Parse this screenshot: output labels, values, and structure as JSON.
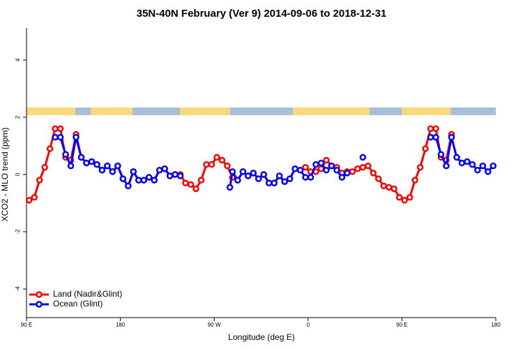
{
  "chart_data": {
    "type": "line",
    "title": "35N-40N February (Ver 9)   2014-09-06 to 2018-12-31",
    "x_label": "Longitude (deg E)",
    "y_label": "XCO2 - MLO trend (ppm)",
    "xlim": [
      90,
      540
    ],
    "xticks": [
      {
        "value": 90,
        "label": "90 E"
      },
      {
        "value": 180,
        "label": "180"
      },
      {
        "value": 270,
        "label": "90 W"
      },
      {
        "value": 360,
        "label": "0"
      },
      {
        "value": 450,
        "label": "90 E"
      },
      {
        "value": 540,
        "label": "180"
      }
    ],
    "ylim": [
      -5,
      5.12
    ],
    "yticks": [
      -4,
      -2,
      0,
      2,
      4
    ],
    "legend": "bottom-left",
    "series": [
      {
        "name": "Land (Nadir&Glint)",
        "color": "#ff0000",
        "x": [
          92.5,
          97.5,
          102.5,
          107.5,
          112.5,
          117.5,
          122.5,
          127.5,
          132.5,
          137.5,
          142.5,
          147.5,
          152.5,
          157.5,
          162.5,
          167.5,
          172.5,
          177.5,
          182.5,
          187.5,
          192.5,
          197.5,
          202.5,
          207.5,
          212.5,
          217.5,
          222.5,
          227.5,
          232.5,
          237.5,
          242.5,
          247.5,
          252.5,
          257.5,
          262.5,
          267.5,
          272.5,
          277.5,
          282.5,
          287.5,
          292.5,
          297.5,
          302.5,
          307.5,
          312.5,
          317.5,
          322.5,
          327.5,
          332.5,
          337.5,
          342.5,
          347.5,
          352.5,
          357.5,
          362.5,
          367.5,
          372.5,
          377.5,
          382.5,
          387.5,
          392.5,
          397.5,
          402.5,
          407.5,
          412.5,
          417.5,
          422.5,
          427.5,
          432.5,
          437.5,
          442.5,
          447.5,
          452.5,
          457.5,
          462.5,
          467.5,
          472.5,
          477.5,
          482.5,
          487.5,
          492.5,
          497.5
        ],
        "values": [
          -0.9,
          -0.8,
          -0.2,
          0.25,
          0.9,
          1.6,
          1.6,
          0.6,
          0.5,
          1.4,
          0.6,
          0.4,
          0.45,
          0.35,
          0.15,
          0.3,
          0.1,
          0.3,
          -0.15,
          -0.4,
          0.1,
          -0.2,
          -0.2,
          -0.1,
          -0.2,
          0.15,
          0.2,
          -0.05,
          0,
          0,
          -0.3,
          -0.35,
          -0.5,
          -0.2,
          0.35,
          0.35,
          0.6,
          0.5,
          0.3,
          -0.1,
          -0.2,
          0.1,
          -0.05,
          0.05,
          -0.15,
          0,
          -0.3,
          -0.3,
          -0.05,
          -0.25,
          -0.15,
          0.2,
          0.15,
          0.25,
          0.1,
          0.1,
          0.2,
          0.5,
          0.3,
          0.25,
          0.05,
          0.1,
          0.1,
          0.2,
          0.25,
          0.3,
          0.05,
          -0.15,
          -0.4,
          -0.45,
          -0.5,
          -0.8,
          -0.9,
          -0.8,
          -0.2,
          0.25,
          0.9,
          1.6,
          1.6,
          0.6,
          0.5,
          1.4
        ]
      },
      {
        "name": "Ocean (Glint)",
        "color": "#0000ff",
        "x": [
          117.5,
          122.5,
          127.5,
          132.5,
          137.5,
          142.5,
          147.5,
          152.5,
          157.5,
          162.5,
          167.5,
          172.5,
          177.5,
          182.5,
          187.5,
          192.5,
          197.5,
          202.5,
          207.5,
          212.5,
          217.5,
          222.5,
          227.5,
          232.5,
          237.5,
          260,
          285,
          287.5,
          292.5,
          297.5,
          302.5,
          307.5,
          312.5,
          317.5,
          322.5,
          327.5,
          332.5,
          337.5,
          342.5,
          347.5,
          352.5,
          357.5,
          362.5,
          367.5,
          372.5,
          377.5,
          382.5,
          387.5,
          392.5,
          397.5,
          405,
          412.5,
          445,
          477.5,
          482.5,
          487.5,
          492.5,
          497.5,
          502.5,
          507.5,
          512.5,
          517.5,
          522.5,
          527.5,
          532.5,
          537.5
        ],
        "values": [
          1.3,
          1.3,
          0.7,
          0.3,
          1.3,
          0.6,
          0.4,
          0.45,
          0.35,
          0.15,
          0.3,
          0.1,
          0.3,
          -0.15,
          -0.4,
          0.1,
          -0.2,
          -0.2,
          -0.1,
          -0.2,
          0.15,
          0.2,
          -0.05,
          0,
          -0.05,
          null,
          -0.45,
          0.1,
          -0.2,
          0.1,
          -0.05,
          0.05,
          -0.15,
          0,
          -0.3,
          -0.3,
          -0.05,
          -0.25,
          -0.15,
          0.2,
          0.15,
          -0.1,
          -0.1,
          0.35,
          0.4,
          0.15,
          0.3,
          0.15,
          -0.1,
          0.05,
          null,
          0.6,
          null,
          1.3,
          1.3,
          0.7,
          0.3,
          1.3,
          0.6,
          0.4,
          0.45,
          0.35,
          0.15,
          0.3,
          0.1,
          0.3
        ]
      }
    ]
  }
}
